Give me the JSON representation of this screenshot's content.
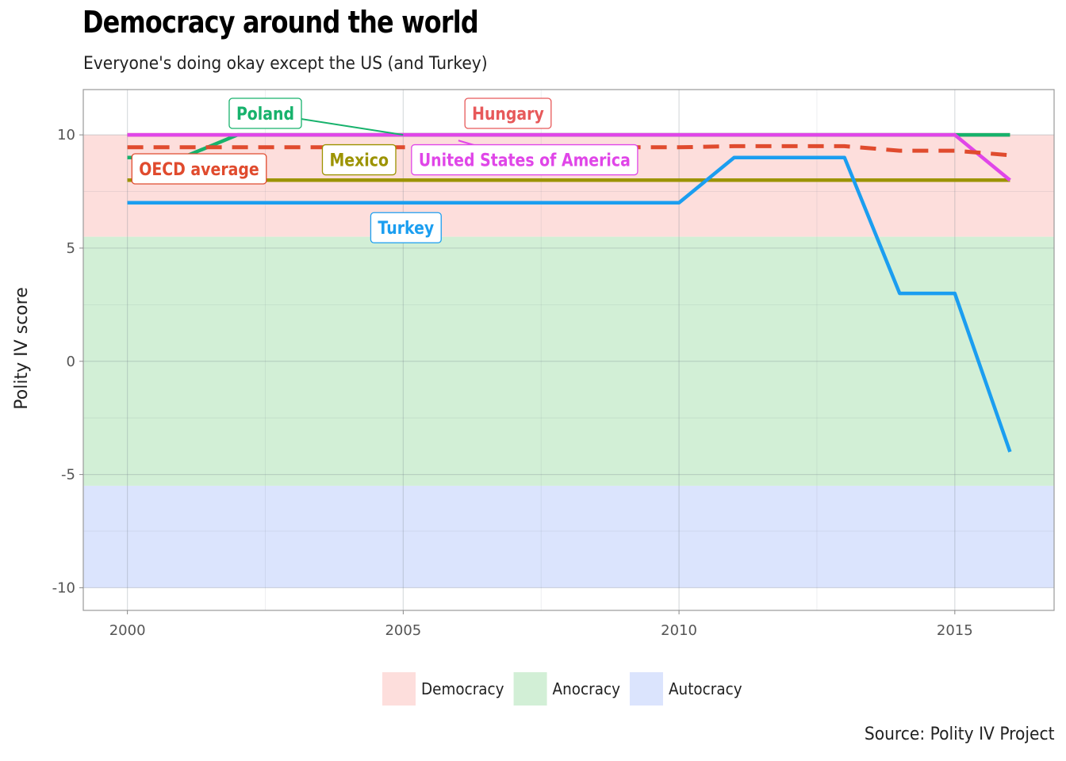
{
  "title": "Democracy around the world",
  "subtitle": "Everyone's doing okay except the US (and Turkey)",
  "caption": "Source: Polity IV Project",
  "chart_data": {
    "type": "line",
    "title": "Democracy around the world",
    "subtitle": "Everyone's doing okay except the US (and Turkey)",
    "xlabel": "",
    "ylabel": "Polity IV score",
    "xlim": [
      1999.2,
      2016.8
    ],
    "ylim": [
      -11,
      12
    ],
    "x_ticks": [
      2000,
      2005,
      2010,
      2015
    ],
    "y_ticks": [
      -10,
      -5,
      0,
      5,
      10
    ],
    "grid": true,
    "bands": [
      {
        "name": "Democracy",
        "from": 5.5,
        "to": 10,
        "color": "#fddedc"
      },
      {
        "name": "Anocracy",
        "from": -5.5,
        "to": 5.5,
        "color": "#d2efd6"
      },
      {
        "name": "Autocracy",
        "from": -10,
        "to": -5.5,
        "color": "#dbe4fd"
      }
    ],
    "legend": {
      "position": "bottom",
      "entries": [
        "Democracy",
        "Anocracy",
        "Autocracy"
      ]
    },
    "series": [
      {
        "name": "Hungary",
        "color": "#e7595a",
        "dashed": false,
        "x": [
          2000,
          2001,
          2002,
          2003,
          2004,
          2005,
          2006,
          2007,
          2008,
          2009,
          2010,
          2011,
          2012,
          2013,
          2014,
          2015,
          2016
        ],
        "y": [
          10,
          10,
          10,
          10,
          10,
          10,
          10,
          10,
          10,
          10,
          10,
          10,
          10,
          10,
          10,
          10,
          10
        ]
      },
      {
        "name": "Poland",
        "color": "#17b26c",
        "dashed": false,
        "x": [
          2000,
          2001,
          2002,
          2003,
          2004,
          2005,
          2006,
          2007,
          2008,
          2009,
          2010,
          2011,
          2012,
          2013,
          2014,
          2015,
          2016
        ],
        "y": [
          9,
          9,
          10,
          10,
          10,
          10,
          10,
          10,
          10,
          10,
          10,
          10,
          10,
          10,
          10,
          10,
          10
        ]
      },
      {
        "name": "Mexico",
        "color": "#9c9300",
        "dashed": false,
        "x": [
          2000,
          2001,
          2002,
          2003,
          2004,
          2005,
          2006,
          2007,
          2008,
          2009,
          2010,
          2011,
          2012,
          2013,
          2014,
          2015,
          2016
        ],
        "y": [
          8,
          8,
          8,
          8,
          8,
          8,
          8,
          8,
          8,
          8,
          8,
          8,
          8,
          8,
          8,
          8,
          8
        ]
      },
      {
        "name": "Turkey",
        "color": "#1b9ef0",
        "dashed": false,
        "x": [
          2000,
          2001,
          2002,
          2003,
          2004,
          2005,
          2006,
          2007,
          2008,
          2009,
          2010,
          2011,
          2012,
          2013,
          2014,
          2015,
          2016
        ],
        "y": [
          7,
          7,
          7,
          7,
          7,
          7,
          7,
          7,
          7,
          7,
          7,
          9,
          9,
          9,
          3,
          3,
          -4
        ]
      },
      {
        "name": "United States of America",
        "color": "#e046e8",
        "dashed": false,
        "x": [
          2000,
          2001,
          2002,
          2003,
          2004,
          2005,
          2006,
          2007,
          2008,
          2009,
          2010,
          2011,
          2012,
          2013,
          2014,
          2015,
          2016
        ],
        "y": [
          10,
          10,
          10,
          10,
          10,
          10,
          10,
          10,
          10,
          10,
          10,
          10,
          10,
          10,
          10,
          10,
          8
        ]
      },
      {
        "name": "OECD average",
        "color": "#e04b2e",
        "dashed": true,
        "x": [
          2000,
          2001,
          2002,
          2003,
          2004,
          2005,
          2006,
          2007,
          2008,
          2009,
          2010,
          2011,
          2012,
          2013,
          2014,
          2015,
          2016
        ],
        "y": [
          9.45,
          9.45,
          9.45,
          9.45,
          9.45,
          9.45,
          9.45,
          9.45,
          9.45,
          9.45,
          9.45,
          9.5,
          9.5,
          9.5,
          9.3,
          9.3,
          9.1
        ]
      }
    ],
    "annotations": [
      {
        "text": "Poland",
        "series": "Poland",
        "x": 2002.5,
        "y": 10.95,
        "pointer_x": 2005,
        "pointer_y": 10
      },
      {
        "text": "Hungary",
        "series": "Hungary",
        "x": 2006.9,
        "y": 10.95,
        "pointer_x": null,
        "pointer_y": null
      },
      {
        "text": "Mexico",
        "series": "Mexico",
        "x": 2004.2,
        "y": 8.9,
        "pointer_x": null,
        "pointer_y": null
      },
      {
        "text": "United States of America",
        "series": "United States of America",
        "x": 2007.2,
        "y": 8.9,
        "pointer_x": 2006,
        "pointer_y": 9.75
      },
      {
        "text": "OECD average",
        "series": "OECD average",
        "x": 2001.3,
        "y": 8.5,
        "pointer_x": 2001,
        "pointer_y": 9.1
      },
      {
        "text": "Turkey",
        "series": "Turkey",
        "x": 2005.05,
        "y": 5.9,
        "pointer_x": null,
        "pointer_y": null
      }
    ]
  }
}
